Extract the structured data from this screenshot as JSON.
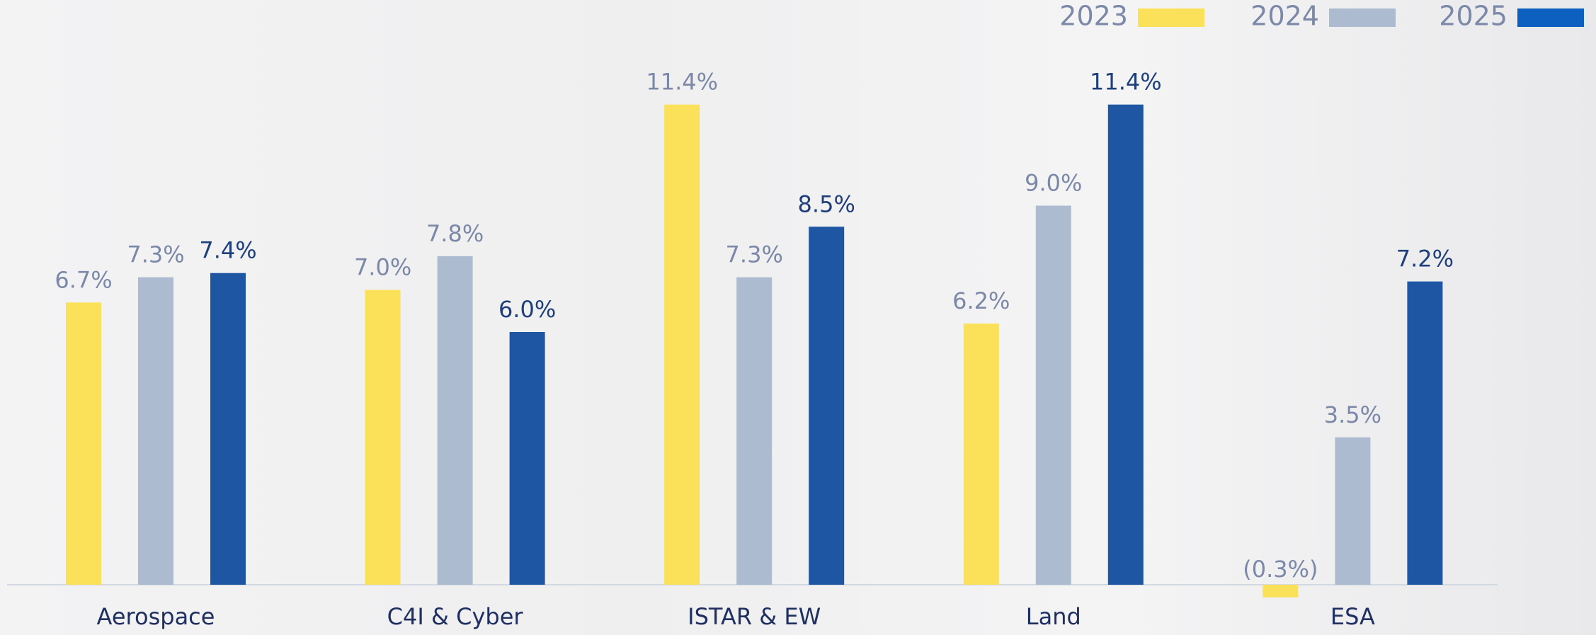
{
  "chart_data": {
    "type": "bar",
    "categories": [
      "Aerospace",
      "C4I & Cyber",
      "ISTAR & EW",
      "Land",
      "ESA"
    ],
    "series": [
      {
        "name": "2023",
        "color": "#fbe05a",
        "values": [
          6.7,
          7.0,
          11.4,
          6.2,
          -0.3
        ],
        "value_labels": [
          "6.7%",
          "7.0%",
          "11.4%",
          "6.2%",
          "(0.3%)"
        ]
      },
      {
        "name": "2024",
        "color": "#adbbd0",
        "values": [
          7.3,
          7.8,
          7.3,
          9.0,
          3.5
        ],
        "value_labels": [
          "7.3%",
          "7.8%",
          "7.3%",
          "9.0%",
          "3.5%"
        ]
      },
      {
        "name": "2025",
        "color": "#1f56a3",
        "values": [
          7.4,
          6.0,
          8.5,
          11.4,
          7.2
        ],
        "value_labels": [
          "7.4%",
          "6.0%",
          "8.5%",
          "11.4%",
          "7.2%"
        ]
      }
    ],
    "legend": "top-right"
  }
}
